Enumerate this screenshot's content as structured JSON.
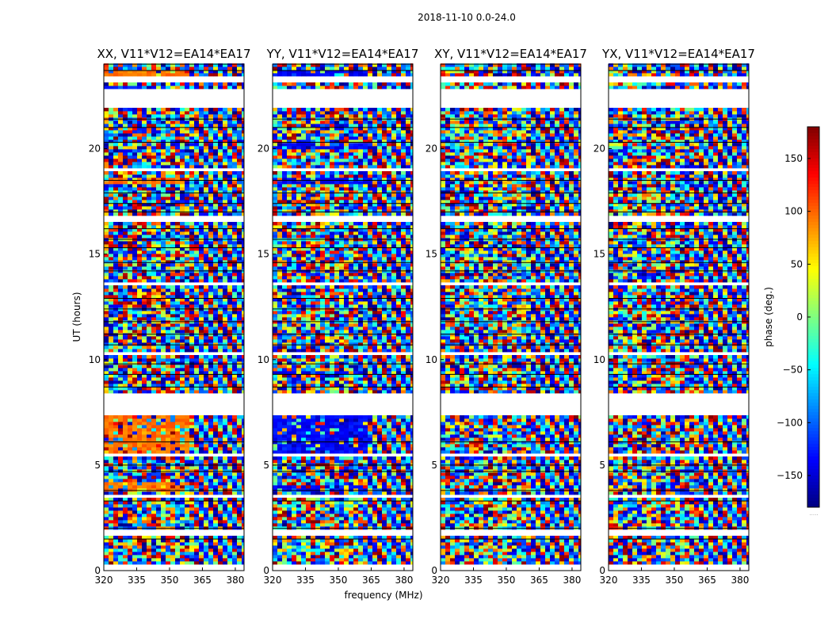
{
  "suptitle": "2018-11-10 0.0-24.0",
  "xlabel": "frequency (MHz)",
  "ylabel": "UT (hours)",
  "colorbar": {
    "label": "phase (deg.)",
    "range": [
      -180,
      180
    ],
    "ticks": [
      "150",
      "100",
      "50",
      "0",
      "−50",
      "−100",
      "−150"
    ],
    "tick_values": [
      150,
      100,
      50,
      0,
      -50,
      -100,
      -150
    ],
    "colormap": "jet",
    "extra_text": "....."
  },
  "chart_data": [
    {
      "type": "heatmap",
      "title": "XX, V11*V12=EA14*EA17",
      "x_ticks": [
        "320",
        "335",
        "350",
        "365",
        "380"
      ],
      "x_tick_values": [
        320,
        335,
        350,
        365,
        380
      ],
      "xlim": [
        320,
        384
      ],
      "y_ticks": [
        "0",
        "5",
        "10",
        "15",
        "20"
      ],
      "y_tick_values": [
        0,
        5,
        10,
        15,
        20
      ],
      "ylim": [
        0,
        24
      ],
      "pattern": "xx"
    },
    {
      "type": "heatmap",
      "title": "YY, V11*V12=EA14*EA17",
      "x_ticks": [
        "320",
        "335",
        "350",
        "365",
        "380"
      ],
      "x_tick_values": [
        320,
        335,
        350,
        365,
        380
      ],
      "xlim": [
        320,
        384
      ],
      "y_ticks": [
        "0",
        "5",
        "10",
        "15",
        "20"
      ],
      "y_tick_values": [
        0,
        5,
        10,
        15,
        20
      ],
      "ylim": [
        0,
        24
      ],
      "pattern": "yy"
    },
    {
      "type": "heatmap",
      "title": "XY, V11*V12=EA14*EA17",
      "x_ticks": [
        "320",
        "335",
        "350",
        "365",
        "380"
      ],
      "x_tick_values": [
        320,
        335,
        350,
        365,
        380
      ],
      "xlim": [
        320,
        384
      ],
      "y_ticks": [
        "0",
        "5",
        "10",
        "15",
        "20"
      ],
      "y_tick_values": [
        0,
        5,
        10,
        15,
        20
      ],
      "ylim": [
        0,
        24
      ],
      "pattern": "xy"
    },
    {
      "type": "heatmap",
      "title": "YX, V11*V12=EA14*EA17",
      "x_ticks": [
        "320",
        "335",
        "350",
        "365",
        "380"
      ],
      "x_tick_values": [
        320,
        335,
        350,
        365,
        380
      ],
      "xlim": [
        320,
        384
      ],
      "y_ticks": [
        "0",
        "5",
        "10",
        "15",
        "20"
      ],
      "y_tick_values": [
        0,
        5,
        10,
        15,
        20
      ],
      "ylim": [
        0,
        24
      ],
      "pattern": "yx"
    }
  ]
}
